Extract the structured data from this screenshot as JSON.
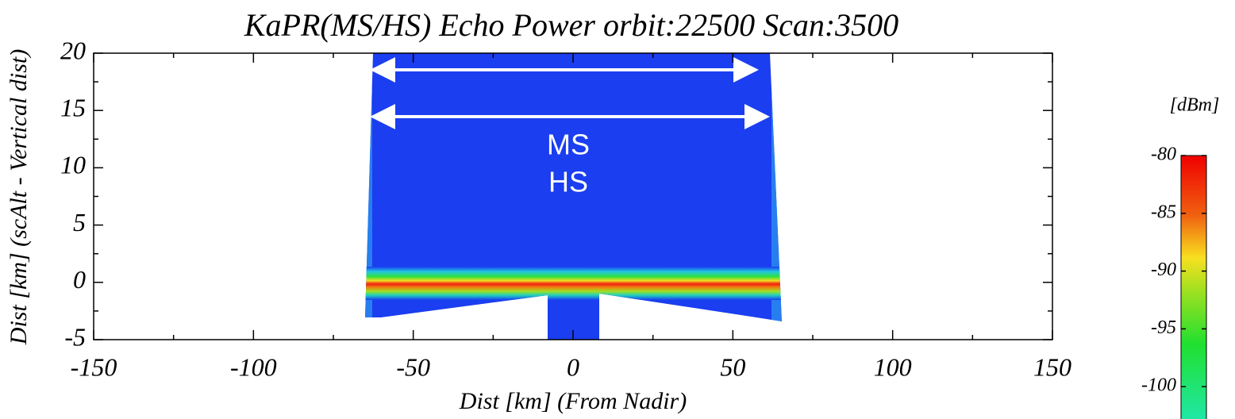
{
  "chart_data": {
    "type": "heatmap",
    "title": "KaPR(MS/HS) Echo Power orbit:22500 Scan:3500",
    "xlabel": "Dist [km] (From Nadir)",
    "ylabel": "Dist [km] (scAlt - Vertical dist)",
    "xlim": [
      -150,
      150
    ],
    "xticks": [
      -150,
      -100,
      -50,
      0,
      50,
      100,
      150
    ],
    "ylim": [
      -5,
      20
    ],
    "yticks": [
      -5,
      0,
      5,
      10,
      15,
      20
    ],
    "annotations": [
      "MS",
      "HS"
    ],
    "colorbar": {
      "label": "[dBm]",
      "lim": [
        -102.8,
        -80
      ],
      "ticks": [
        -80,
        -85,
        -90,
        -95,
        -100
      ]
    }
  }
}
